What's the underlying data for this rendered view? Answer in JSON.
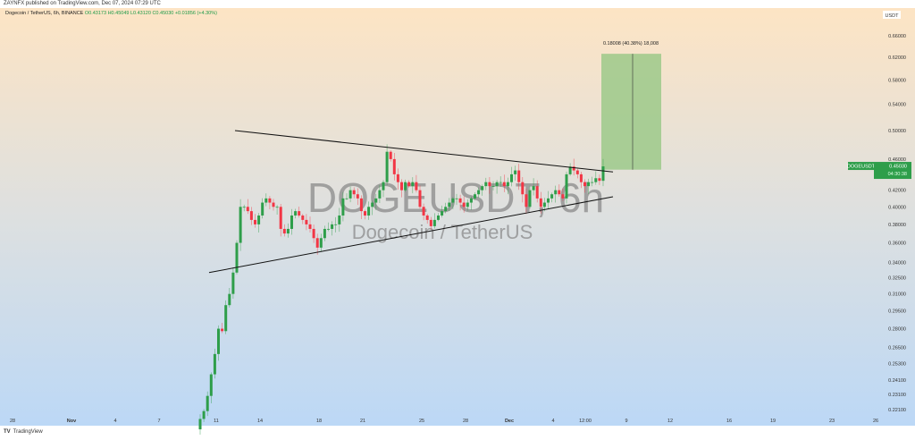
{
  "header": {
    "published": "ZAYNFX published on TradingView.com, Dec 07, 2024 07:29 UTC"
  },
  "legend": {
    "symbol": "Dogecoin / TetherUS, 6h, BINANCE",
    "open": "O0.43173",
    "high": "H0.45049",
    "low": "L0.43120",
    "close": "C0.45030",
    "change": "+0.01856 (+4.30%)"
  },
  "watermark": {
    "title": "DOGEUSDT, 6h",
    "subtitle": "Dogecoin / TetherUS"
  },
  "price_axis": {
    "currency": "USDT",
    "scale": "log",
    "ticks": [
      "0.66000",
      "0.62000",
      "0.58000",
      "0.54000",
      "0.50000",
      "0.46000",
      "0.42000",
      "0.40000",
      "0.38000",
      "0.36000",
      "0.34000",
      "0.32500",
      "0.31000",
      "0.29500",
      "0.28000",
      "0.26500",
      "0.25300",
      "0.24100",
      "0.23100",
      "0.22100"
    ]
  },
  "time_axis": {
    "ticks": [
      "28",
      "Nov",
      "4",
      "7",
      "11",
      "14",
      "18",
      "21",
      "25",
      "28",
      "Dec",
      "4",
      "12:00",
      "9",
      "12",
      "16",
      "19",
      "23",
      "26"
    ]
  },
  "last_price": {
    "symbol": "DOGEUSDT",
    "price": "0.45030",
    "countdown": "04:30:38",
    "color": "#2e9e4a"
  },
  "measure": {
    "label": "0.18008 (40.38%) 18,008",
    "from": 0.446,
    "to": 0.6261,
    "color": "#9cc98a"
  },
  "colors": {
    "up": "#2e9e4a",
    "down": "#f23645"
  },
  "chart_data": {
    "type": "candlestick",
    "closes": [
      0.215,
      0.22,
      0.23,
      0.245,
      0.26,
      0.28,
      0.278,
      0.3,
      0.31,
      0.33,
      0.36,
      0.4,
      0.4,
      0.395,
      0.385,
      0.38,
      0.39,
      0.405,
      0.41,
      0.405,
      0.4,
      0.4,
      0.375,
      0.37,
      0.375,
      0.39,
      0.395,
      0.39,
      0.385,
      0.38,
      0.375,
      0.365,
      0.355,
      0.365,
      0.375,
      0.375,
      0.38,
      0.38,
      0.39,
      0.41,
      0.41,
      0.42,
      0.415,
      0.41,
      0.395,
      0.39,
      0.4,
      0.405,
      0.41,
      0.42,
      0.43,
      0.47,
      0.46,
      0.44,
      0.43,
      0.42,
      0.43,
      0.425,
      0.43,
      0.42,
      0.4,
      0.39,
      0.385,
      0.378,
      0.385,
      0.39,
      0.395,
      0.4,
      0.405,
      0.41,
      0.41,
      0.405,
      0.4,
      0.405,
      0.41,
      0.415,
      0.42,
      0.425,
      0.43,
      0.425,
      0.425,
      0.43,
      0.43,
      0.425,
      0.43,
      0.44,
      0.445,
      0.43,
      0.415,
      0.4,
      0.42,
      0.425,
      0.41,
      0.4,
      0.405,
      0.41,
      0.415,
      0.42,
      0.415,
      0.41,
      0.44,
      0.45,
      0.445,
      0.44,
      0.43,
      0.425,
      0.43,
      0.43,
      0.435,
      0.4317,
      0.4503
    ],
    "trendlines": [
      {
        "from": [
          "Nov 12",
          0.5
        ],
        "to": [
          "Dec 7",
          0.443
        ]
      },
      {
        "from": [
          "Nov 10",
          0.33
        ],
        "to": [
          "Dec 7",
          0.412
        ]
      }
    ]
  }
}
